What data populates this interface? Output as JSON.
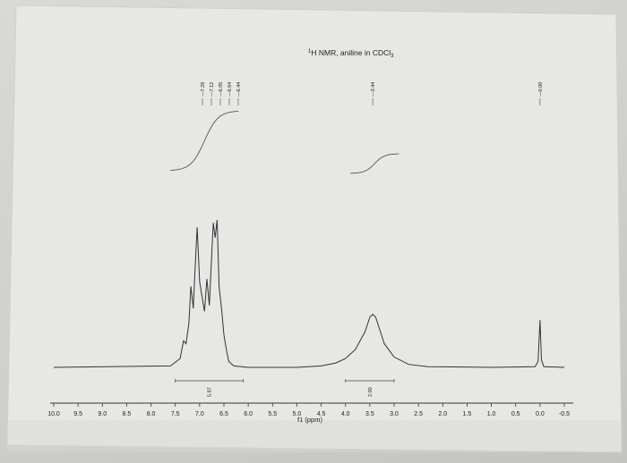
{
  "chart_data": {
    "type": "line",
    "title": "¹H NMR, aniline in CDCl₃",
    "title_parts": {
      "main": "H NMR, aniline in CDCl",
      "sup": "1",
      "sub": "3"
    },
    "xlabel": "f1 (ppm)",
    "xlim": [
      10.0,
      -0.5
    ],
    "x_reversed": true,
    "ticks": [
      "10.0",
      "9.5",
      "9.0",
      "8.5",
      "8.0",
      "7.5",
      "7.0",
      "6.5",
      "6.0",
      "5.5",
      "5.0",
      "4.5",
      "4.0",
      "3.5",
      "3.0",
      "2.5",
      "2.0",
      "1.5",
      "1.0",
      "0.5",
      "0.0",
      "-0.5"
    ],
    "tick_values": [
      10.0,
      9.5,
      9.0,
      8.5,
      8.0,
      7.5,
      7.0,
      6.5,
      6.0,
      5.5,
      5.0,
      4.5,
      4.0,
      3.5,
      3.0,
      2.5,
      2.0,
      1.5,
      1.0,
      0.5,
      0.0,
      -0.5
    ],
    "peak_labels": [
      "7.28",
      "7.12",
      "6.95",
      "6.64",
      "6.44",
      "3.44",
      "0.00"
    ],
    "peak_label_values": [
      7.28,
      7.12,
      6.95,
      6.64,
      6.44,
      3.44,
      0.0
    ],
    "integrals": [
      {
        "label": "5.87",
        "from": 7.5,
        "to": 6.1
      },
      {
        "label": "2.00",
        "from": 4.0,
        "to": 3.0
      }
    ],
    "series": [
      {
        "values": [
          [
            10.0,
            0.0
          ],
          [
            7.6,
            0.01
          ],
          [
            7.4,
            0.06
          ],
          [
            7.33,
            0.18
          ],
          [
            7.28,
            0.16
          ],
          [
            7.22,
            0.3
          ],
          [
            7.18,
            0.55
          ],
          [
            7.13,
            0.4
          ],
          [
            7.1,
            0.62
          ],
          [
            7.05,
            0.95
          ],
          [
            7.0,
            0.58
          ],
          [
            6.96,
            0.5
          ],
          [
            6.9,
            0.38
          ],
          [
            6.85,
            0.6
          ],
          [
            6.8,
            0.42
          ],
          [
            6.76,
            0.7
          ],
          [
            6.72,
            0.98
          ],
          [
            6.68,
            0.88
          ],
          [
            6.64,
            1.0
          ],
          [
            6.6,
            0.55
          ],
          [
            6.55,
            0.4
          ],
          [
            6.5,
            0.22
          ],
          [
            6.45,
            0.12
          ],
          [
            6.4,
            0.04
          ],
          [
            6.3,
            0.01
          ],
          [
            6.0,
            0.0
          ],
          [
            5.0,
            0.0
          ],
          [
            4.5,
            0.01
          ],
          [
            4.2,
            0.03
          ],
          [
            4.0,
            0.06
          ],
          [
            3.8,
            0.12
          ],
          [
            3.6,
            0.24
          ],
          [
            3.5,
            0.34
          ],
          [
            3.44,
            0.36
          ],
          [
            3.38,
            0.34
          ],
          [
            3.3,
            0.26
          ],
          [
            3.2,
            0.16
          ],
          [
            3.0,
            0.07
          ],
          [
            2.7,
            0.02
          ],
          [
            2.3,
            0.005
          ],
          [
            1.0,
            0.0
          ],
          [
            0.1,
            0.005
          ],
          [
            0.04,
            0.04
          ],
          [
            0.0,
            0.32
          ],
          [
            -0.03,
            0.05
          ],
          [
            -0.08,
            0.005
          ],
          [
            -0.5,
            0.0
          ]
        ]
      }
    ]
  }
}
